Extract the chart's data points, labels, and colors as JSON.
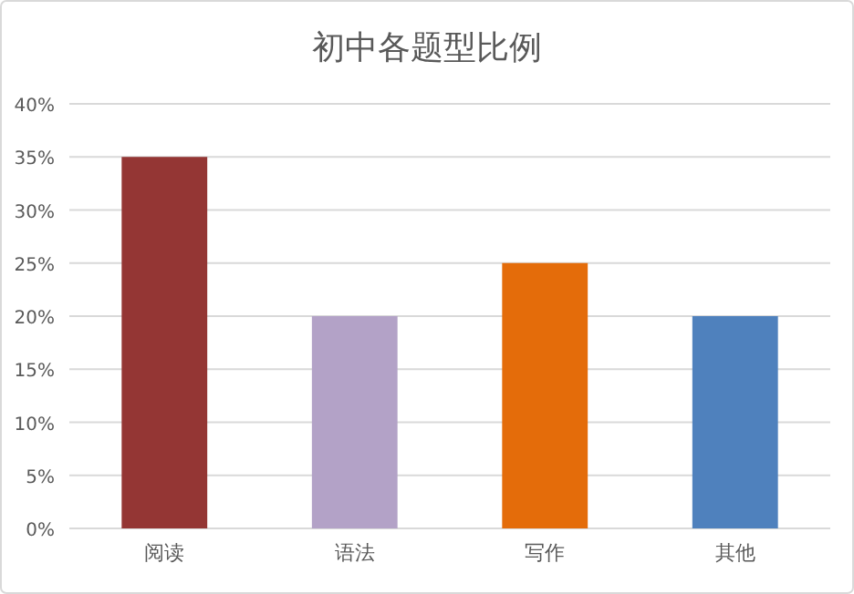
{
  "chart_data": {
    "type": "bar",
    "title": "初中各题型比例",
    "categories": [
      "阅读",
      "语法",
      "写作",
      "其他"
    ],
    "values": [
      35,
      20,
      25,
      20
    ],
    "colors": [
      "#943634",
      "#b3a2c7",
      "#e46c0a",
      "#4f81bd"
    ],
    "ylim": [
      0,
      40
    ],
    "yticks": [
      {
        "value": 0,
        "label": "0%"
      },
      {
        "value": 5,
        "label": "5%"
      },
      {
        "value": 10,
        "label": "10%"
      },
      {
        "value": 15,
        "label": "15%"
      },
      {
        "value": 20,
        "label": "20%"
      },
      {
        "value": 25,
        "label": "25%"
      },
      {
        "value": 30,
        "label": "30%"
      },
      {
        "value": 35,
        "label": "35%"
      },
      {
        "value": 40,
        "label": "40%"
      }
    ],
    "grid": "y"
  }
}
